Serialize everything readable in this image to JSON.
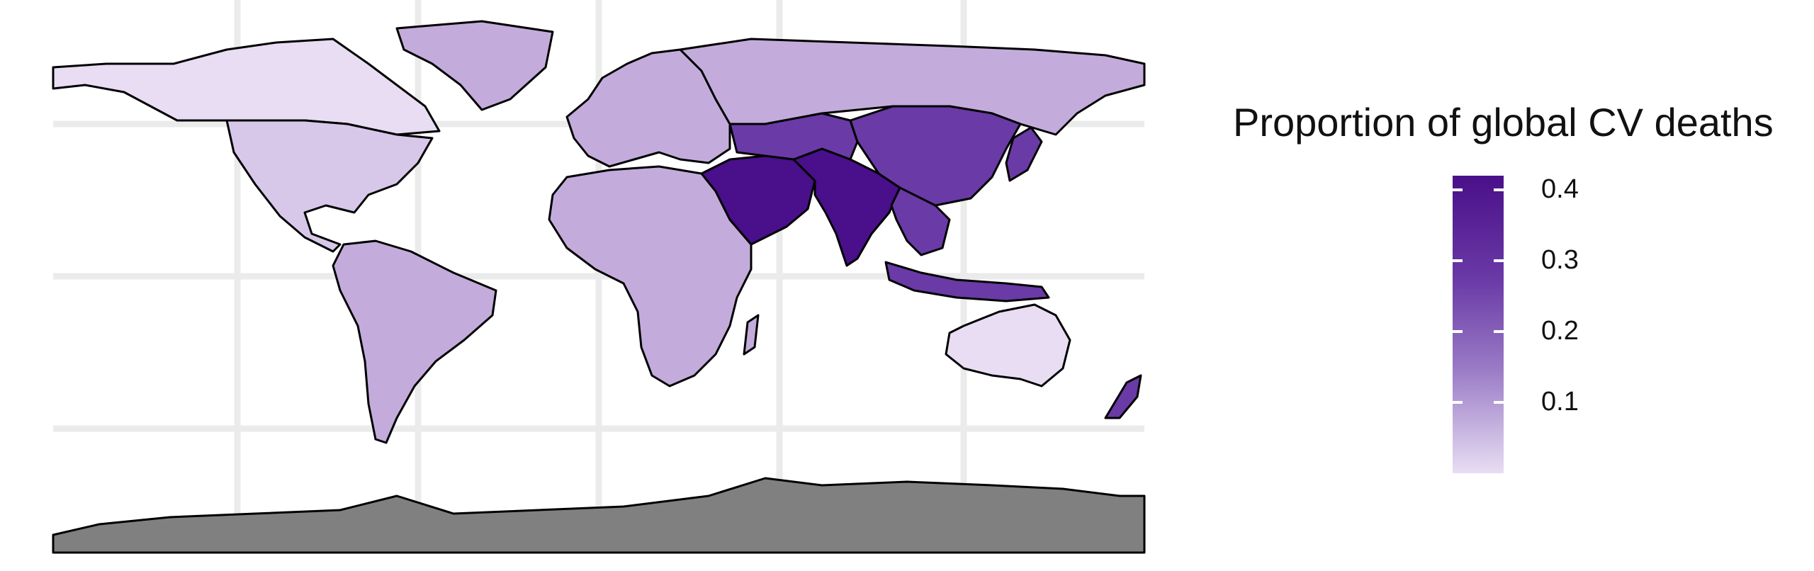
{
  "legend": {
    "title": "Proportion of global CV deaths",
    "ticks": [
      "0.4",
      "0.3",
      "0.2",
      "0.1"
    ],
    "tick_values": [
      0.4,
      0.3,
      0.2,
      0.1
    ],
    "range": [
      0.0,
      0.42
    ]
  },
  "colors": {
    "lowest": "#e8ddf3",
    "low": "#d7c8ea",
    "mid_low": "#c3acdc",
    "mid": "#9a7bc6",
    "mid_high": "#6a3aa6",
    "highest": "#4a0f8a",
    "antarctica": "#808080",
    "grid": "#ebebeb",
    "border": "#000000"
  },
  "regions": [
    {
      "name": "north-america-north",
      "level": "lowest"
    },
    {
      "name": "north-america-south",
      "level": "low"
    },
    {
      "name": "greenland",
      "level": "mid_low"
    },
    {
      "name": "south-america",
      "level": "mid_low"
    },
    {
      "name": "europe",
      "level": "mid_low"
    },
    {
      "name": "russia",
      "level": "mid_low"
    },
    {
      "name": "africa",
      "level": "mid_low"
    },
    {
      "name": "middle-east",
      "level": "highest"
    },
    {
      "name": "south-asia",
      "level": "highest"
    },
    {
      "name": "china",
      "level": "mid_high"
    },
    {
      "name": "central-asia",
      "level": "mid_high"
    },
    {
      "name": "southeast-asia",
      "level": "mid_high"
    },
    {
      "name": "indonesia",
      "level": "mid_high"
    },
    {
      "name": "japan",
      "level": "mid_high"
    },
    {
      "name": "australia",
      "level": "lowest"
    },
    {
      "name": "new-zealand",
      "level": "mid_high"
    },
    {
      "name": "antarctica",
      "level": "antarctica"
    }
  ]
}
